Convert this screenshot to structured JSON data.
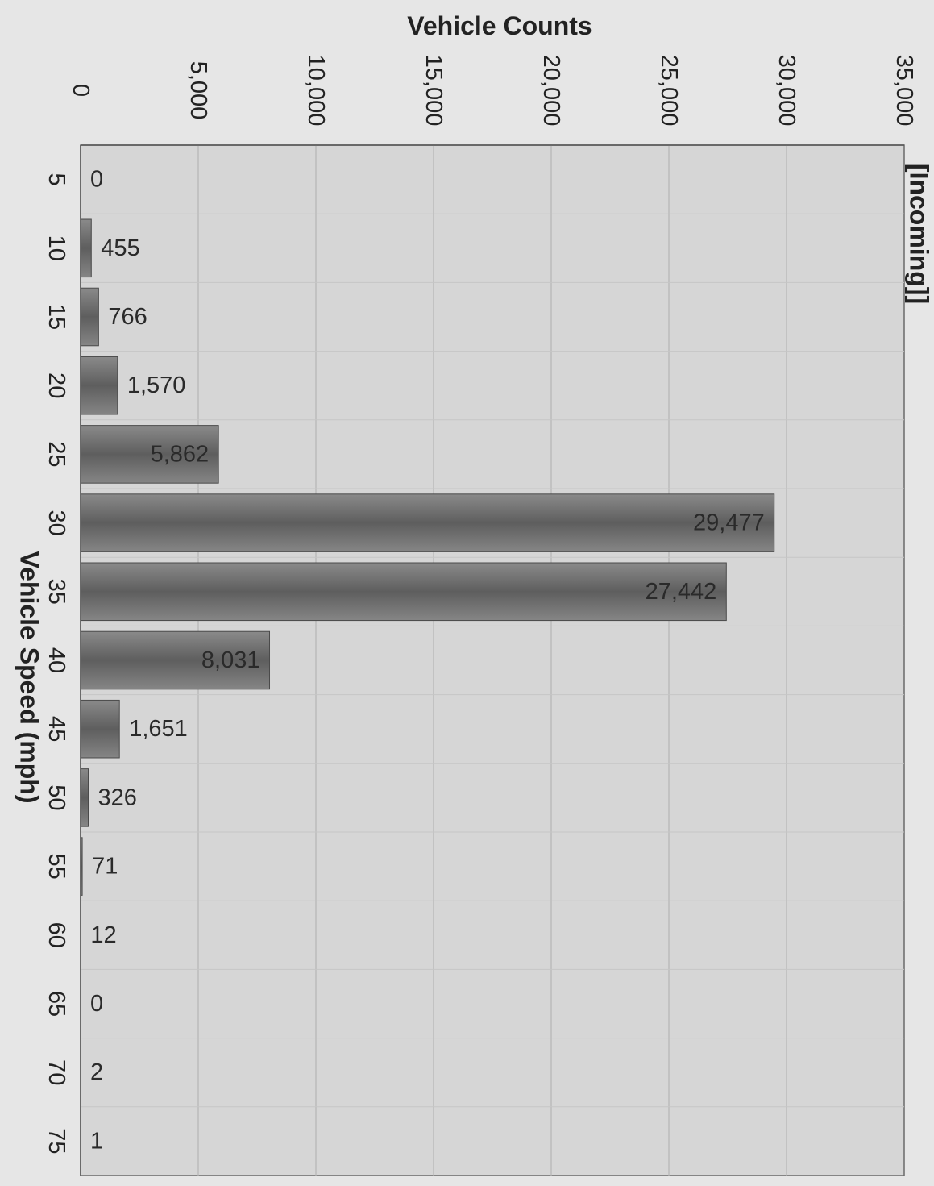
{
  "chart_data": {
    "type": "bar",
    "orientation": "vertical-bars-rotated-page",
    "title": "[Incoming]]",
    "xlabel": "Vehicle Speed (mph)",
    "ylabel": "Vehicle Counts",
    "categories": [
      "5",
      "10",
      "15",
      "20",
      "25",
      "30",
      "35",
      "40",
      "45",
      "50",
      "55",
      "60",
      "65",
      "70",
      "75"
    ],
    "values": [
      0,
      455,
      766,
      1570,
      5862,
      29477,
      27442,
      8031,
      1651,
      326,
      71,
      12,
      0,
      2,
      1
    ],
    "data_labels": [
      "0",
      "455",
      "766",
      "1,570",
      "5,862",
      "29,477",
      "27,442",
      "8,031",
      "1,651",
      "326",
      "71",
      "12",
      "0",
      "2",
      "1"
    ],
    "y_ticks": [
      "0",
      "5,000",
      "10,000",
      "15,000",
      "20,000",
      "25,000",
      "30,000",
      "35,000"
    ],
    "ylim": [
      0,
      35000
    ],
    "grid": true,
    "colors": {
      "bar": "#6a6a6a",
      "plot_background": "#d6d6d6",
      "page_background": "#e6e6e6",
      "text": "#222222"
    }
  }
}
